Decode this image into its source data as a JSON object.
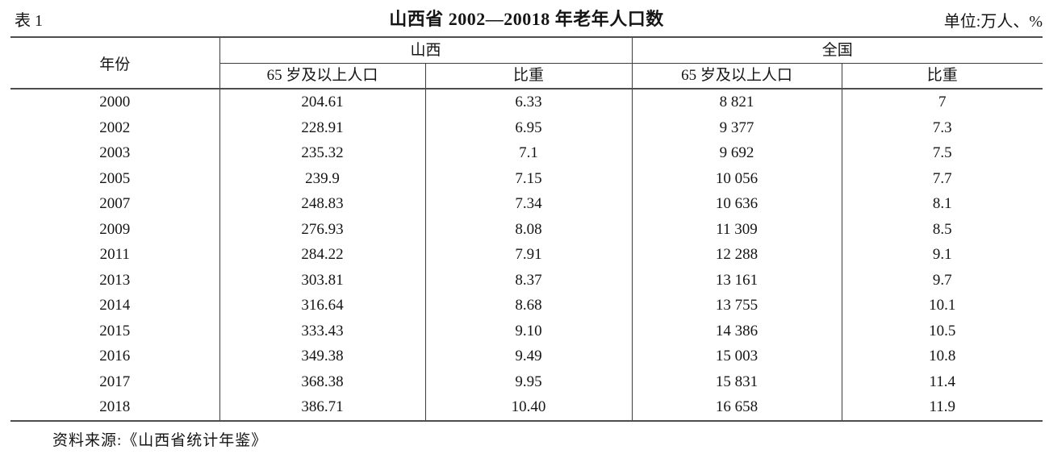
{
  "page": {
    "table_label": "表 1",
    "title": "山西省 2002—20018 年老年人口数",
    "unit_note": "单位:万人、%",
    "source_note": "资料来源:《山西省统计年鉴》"
  },
  "header": {
    "year": "年份",
    "region_shanxi": "山西",
    "region_national": "全国",
    "pop_65_plus": "65 岁及以上人口",
    "proportion": "比重"
  },
  "chart_data": {
    "type": "table",
    "columns": [
      "年份",
      "山西 65 岁及以上人口",
      "山西 比重",
      "全国 65 岁及以上人口",
      "全国 比重"
    ],
    "rows": [
      [
        "2000",
        "204.61",
        "6.33",
        "8 821",
        "7"
      ],
      [
        "2002",
        "228.91",
        "6.95",
        "9 377",
        "7.3"
      ],
      [
        "2003",
        "235.32",
        "7.1",
        "9 692",
        "7.5"
      ],
      [
        "2005",
        "239.9",
        "7.15",
        "10 056",
        "7.7"
      ],
      [
        "2007",
        "248.83",
        "7.34",
        "10 636",
        "8.1"
      ],
      [
        "2009",
        "276.93",
        "8.08",
        "11 309",
        "8.5"
      ],
      [
        "2011",
        "284.22",
        "7.91",
        "12 288",
        "9.1"
      ],
      [
        "2013",
        "303.81",
        "8.37",
        "13 161",
        "9.7"
      ],
      [
        "2014",
        "316.64",
        "8.68",
        "13 755",
        "10.1"
      ],
      [
        "2015",
        "333.43",
        "9.10",
        "14 386",
        "10.5"
      ],
      [
        "2016",
        "349.38",
        "9.49",
        "15 003",
        "10.8"
      ],
      [
        "2017",
        "368.38",
        "9.95",
        "15 831",
        "11.4"
      ],
      [
        "2018",
        "386.71",
        "10.40",
        "16 658",
        "11.9"
      ]
    ]
  }
}
